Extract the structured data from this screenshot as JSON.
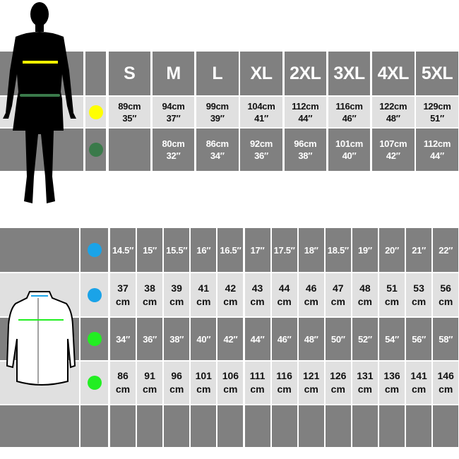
{
  "colors": {
    "dark": "#808080",
    "light": "#e0e0e0",
    "chest_yellow": "#ffff00",
    "waist_green": "#3a7a4a",
    "collar_blue": "#1aa3e8",
    "chest_green": "#22ee22"
  },
  "top_table": {
    "sizes": [
      "S",
      "M",
      "L",
      "XL",
      "2XL",
      "3XL",
      "4XL",
      "5XL"
    ],
    "rows": [
      {
        "marker": "chest_yellow",
        "values": [
          [
            "89cm",
            "35″"
          ],
          [
            "94cm",
            "37″"
          ],
          [
            "99cm",
            "39″"
          ],
          [
            "104cm",
            "41″"
          ],
          [
            "112cm",
            "44″"
          ],
          [
            "116cm",
            "46″"
          ],
          [
            "122cm",
            "48″"
          ],
          [
            "129cm",
            "51″"
          ]
        ]
      },
      {
        "marker": "waist_green",
        "values": [
          [
            "",
            ""
          ],
          [
            "80cm",
            "32″"
          ],
          [
            "86cm",
            "34″"
          ],
          [
            "92cm",
            "36″"
          ],
          [
            "96cm",
            "38″"
          ],
          [
            "101cm",
            "40″"
          ],
          [
            "107cm",
            "42″"
          ],
          [
            "112cm",
            "44″"
          ]
        ]
      }
    ]
  },
  "bottom_table": {
    "rows": [
      {
        "marker": "collar_blue",
        "values": [
          "14.5″",
          "15″",
          "15.5″",
          "16″",
          "16.5″",
          "17″",
          "17.5″",
          "18″",
          "18.5″",
          "19″",
          "20″",
          "21″",
          "22″"
        ]
      },
      {
        "marker": "collar_blue",
        "values": [
          [
            "37",
            "cm"
          ],
          [
            "38",
            "cm"
          ],
          [
            "39",
            "cm"
          ],
          [
            "41",
            "cm"
          ],
          [
            "42",
            "cm"
          ],
          [
            "43",
            "cm"
          ],
          [
            "44",
            "cm"
          ],
          [
            "46",
            "cm"
          ],
          [
            "47",
            "cm"
          ],
          [
            "48",
            "cm"
          ],
          [
            "51",
            "cm"
          ],
          [
            "53",
            "cm"
          ],
          [
            "56",
            "cm"
          ]
        ]
      },
      {
        "marker": "chest_green",
        "values": [
          "34″",
          "36″",
          "38″",
          "40″",
          "42″",
          "44″",
          "46″",
          "48″",
          "50″",
          "52″",
          "54″",
          "56″",
          "58″"
        ]
      },
      {
        "marker": "chest_green",
        "values": [
          [
            "86",
            "cm"
          ],
          [
            "91",
            "cm"
          ],
          [
            "96",
            "cm"
          ],
          [
            "101",
            "cm"
          ],
          [
            "106",
            "cm"
          ],
          [
            "111",
            "cm"
          ],
          [
            "116",
            "cm"
          ],
          [
            "121",
            "cm"
          ],
          [
            "126",
            "cm"
          ],
          [
            "131",
            "cm"
          ],
          [
            "136",
            "cm"
          ],
          [
            "141",
            "cm"
          ],
          [
            "146",
            "cm"
          ]
        ]
      },
      {
        "marker": null,
        "values": []
      }
    ]
  }
}
